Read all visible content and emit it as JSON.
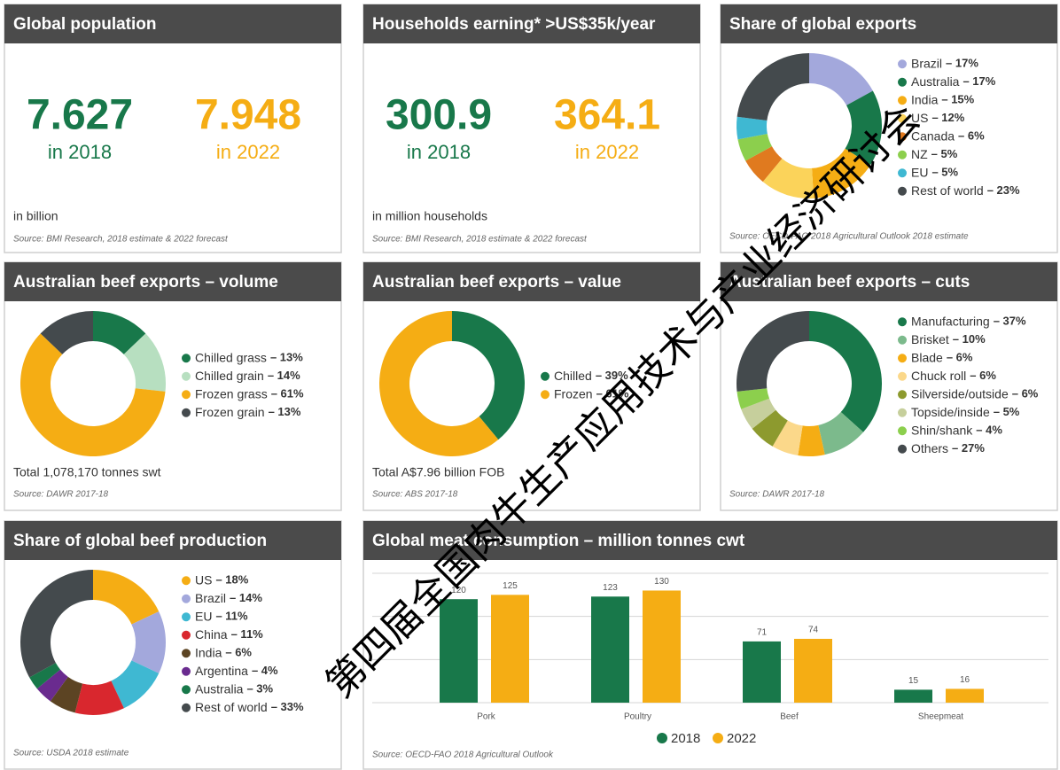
{
  "kpis": [
    {
      "title": "Global population",
      "values": [
        {
          "value": 7.627,
          "label": "in 2018"
        },
        {
          "value": 7.948,
          "label": "in 2022"
        }
      ],
      "colors": [
        "#18784a",
        "#f5ad14"
      ],
      "unit": "in billion",
      "source": "Source: BMI Research, 2018 estimate & 2022 forecast"
    },
    {
      "title": "Households earning* >US$35k/year",
      "values": [
        {
          "value": 300.9,
          "label": "in 2018"
        },
        {
          "value": 364.1,
          "label": "in 2022"
        }
      ],
      "colors": [
        "#18784a",
        "#f5ad14"
      ],
      "unit": "in million households",
      "source": "Source: BMI Research, 2018 estimate & 2022 forecast"
    }
  ],
  "chart_data": [
    {
      "type": "donut",
      "title": "Share of global exports",
      "categories": [
        "Brazil",
        "Australia",
        "India",
        "US",
        "Canada",
        "NZ",
        "EU",
        "Rest of world"
      ],
      "values": [
        17,
        17,
        15,
        12,
        6,
        5,
        5,
        23
      ],
      "value_labels": [
        "– 17%",
        "– 17%",
        "– 15%",
        "– 12%",
        "– 6%",
        "– 5%",
        "– 5%",
        "– 23%"
      ],
      "colors": [
        "#a3a8dc",
        "#18784a",
        "#f5ad14",
        "#fbd35a",
        "#e07a1f",
        "#8ccf4d",
        "#3fb8d2",
        "#444a4d"
      ],
      "source": "Source: OECD-FAO 2018 Agricultural Outlook 2018 estimate"
    },
    {
      "type": "donut",
      "title": "Australian beef exports – volume",
      "categories": [
        "Chilled grass",
        "Chilled grain",
        "Frozen grass",
        "Frozen grain"
      ],
      "values": [
        13,
        14,
        61,
        13
      ],
      "value_labels": [
        "– 13%",
        "– 14%",
        "– 61%",
        "– 13%"
      ],
      "colors": [
        "#18784a",
        "#b7dfc0",
        "#f5ad14",
        "#444a4d"
      ],
      "total": "Total 1,078,170 tonnes swt",
      "source": "Source: DAWR 2017-18"
    },
    {
      "type": "donut",
      "title": "Australian beef exports – value",
      "categories": [
        "Chilled",
        "Frozen"
      ],
      "values": [
        39,
        61
      ],
      "value_labels": [
        "– 39%",
        "– 61%"
      ],
      "colors": [
        "#18784a",
        "#f5ad14"
      ],
      "total": "Total A$7.96 billion FOB",
      "source": "Source: ABS 2017-18"
    },
    {
      "type": "donut",
      "title": "Australian beef exports – cuts",
      "categories": [
        "Manufacturing",
        "Brisket",
        "Blade",
        "Chuck roll",
        "Silverside/outside",
        "Topside/inside",
        "Shin/shank",
        "Others"
      ],
      "values": [
        37,
        10,
        6,
        6,
        6,
        5,
        4,
        27
      ],
      "value_labels": [
        "– 37%",
        "– 10%",
        "– 6%",
        "– 6%",
        "– 6%",
        "– 5%",
        "– 4%",
        "– 27%"
      ],
      "colors": [
        "#18784a",
        "#7cba8c",
        "#f5ad14",
        "#fbd88a",
        "#8d9a2e",
        "#c6cf9c",
        "#8ccf4d",
        "#444a4d"
      ],
      "source": "Source: DAWR 2017-18"
    },
    {
      "type": "donut",
      "title": "Share of global beef production",
      "categories": [
        "US",
        "Brazil",
        "EU",
        "China",
        "India",
        "Argentina",
        "Australia",
        "Rest of world"
      ],
      "values": [
        18,
        14,
        11,
        11,
        6,
        4,
        3,
        33
      ],
      "value_labels": [
        "– 18%",
        "– 14%",
        "– 11%",
        "– 11%",
        "– 6%",
        "– 4%",
        "– 3%",
        "– 33%"
      ],
      "colors": [
        "#f5ad14",
        "#a3a8dc",
        "#3fb8d2",
        "#d9272e",
        "#5c4423",
        "#6a2b8f",
        "#18784a",
        "#444a4d"
      ],
      "source": "Source: USDA 2018 estimate"
    },
    {
      "type": "bar",
      "title": "Global meat consumption – million tonnes cwt",
      "categories": [
        "Pork",
        "Poultry",
        "Beef",
        "Sheepmeat"
      ],
      "series": [
        {
          "name": "2018",
          "color": "#18784a",
          "values": [
            120,
            123,
            71,
            15
          ]
        },
        {
          "name": "2022",
          "color": "#f5ad14",
          "values": [
            125,
            130,
            74,
            16
          ]
        }
      ],
      "ylim": [
        0,
        150
      ],
      "yticks": [
        0,
        50,
        100,
        150
      ],
      "grid": true,
      "source": "Source: OECD-FAO 2018 Agricultural Outlook"
    }
  ],
  "watermark": "第四届全国肉牛生产应用技术与产业经济研讨会"
}
